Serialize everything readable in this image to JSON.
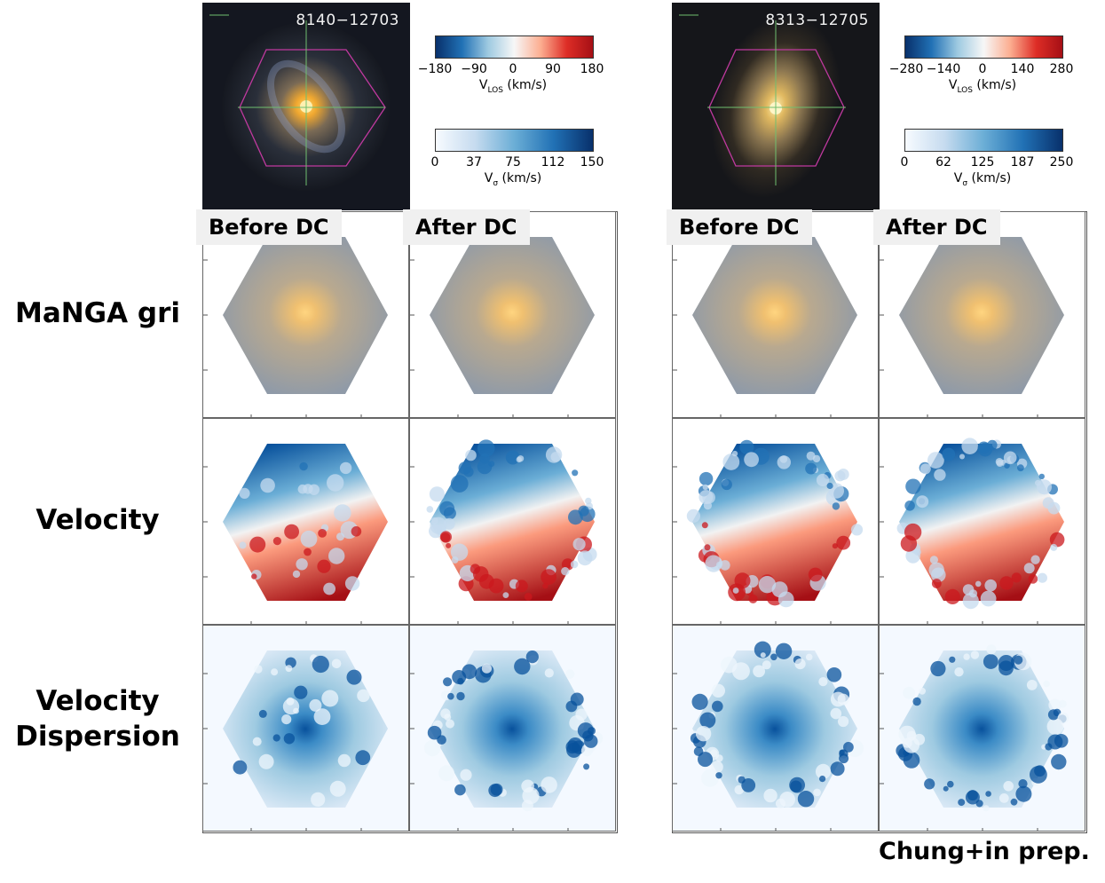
{
  "row_labels": {
    "gri": "MaNGA gri",
    "velocity": "Velocity",
    "dispersion_line1": "Velocity",
    "dispersion_line2": "Dispersion"
  },
  "galaxies": [
    {
      "id": "8140−12703",
      "vlos_ticks": [
        "−180",
        "−90",
        "0",
        "90",
        "180"
      ],
      "vsigma_ticks": [
        "0",
        "37",
        "75",
        "112",
        "150"
      ],
      "vlos_label_main": "V",
      "vlos_label_sub": "LOS",
      "vlos_label_unit": " (km/s)",
      "vsigma_label_main": "V",
      "vsigma_label_sub": "σ",
      "vsigma_label_unit": " (km/s)",
      "before_tag": "Before DC",
      "after_tag": "After DC"
    },
    {
      "id": "8313−12705",
      "vlos_ticks": [
        "−280",
        "−140",
        "0",
        "140",
        "280"
      ],
      "vsigma_ticks": [
        "0",
        "62",
        "125",
        "187",
        "250"
      ],
      "vlos_label_main": "V",
      "vlos_label_sub": "LOS",
      "vlos_label_unit": " (km/s)",
      "vsigma_label_main": "V",
      "vsigma_label_sub": "σ",
      "vsigma_label_unit": " (km/s)",
      "before_tag": "Before DC",
      "after_tag": "After DC"
    }
  ],
  "colors": {
    "velocity_blue": "#08519c",
    "velocity_red": "#b2001a",
    "dispersion_dark": "#08519c",
    "dispersion_light": "#f4f9ff",
    "hex_outline": "#c0399f"
  },
  "credit": "Chung+in prep."
}
